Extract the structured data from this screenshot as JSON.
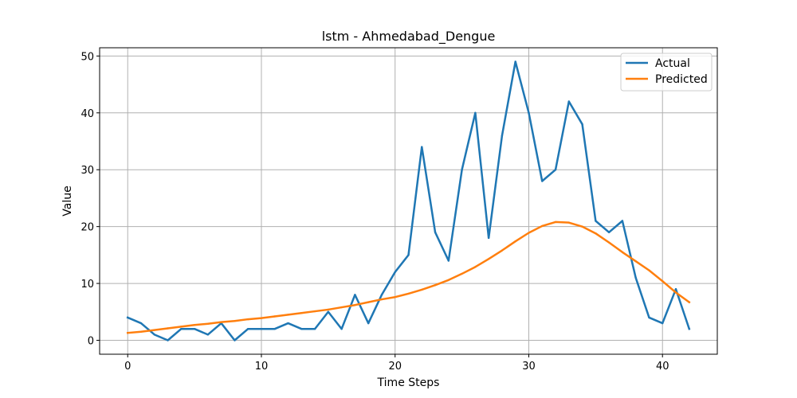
{
  "chart_data": {
    "type": "line",
    "title": "lstm - Ahmedabad_Dengue",
    "xlabel": "Time Steps",
    "ylabel": "Value",
    "xlim": [
      -2.1,
      44.1
    ],
    "ylim": [
      -2.45,
      51.45
    ],
    "xticks": [
      0,
      10,
      20,
      30,
      40
    ],
    "yticks": [
      0,
      10,
      20,
      30,
      40,
      50
    ],
    "grid": true,
    "legend_position": "top-right",
    "series": [
      {
        "name": "Actual",
        "color": "#1f77b4",
        "x": [
          0,
          1,
          2,
          3,
          4,
          5,
          6,
          7,
          8,
          9,
          10,
          11,
          12,
          13,
          14,
          15,
          16,
          17,
          18,
          19,
          20,
          21,
          22,
          23,
          24,
          25,
          26,
          27,
          28,
          29,
          30,
          31,
          32,
          33,
          34,
          35,
          36,
          37,
          38,
          39,
          40,
          41,
          42
        ],
        "values": [
          4,
          3,
          1,
          0,
          2,
          2,
          1,
          3,
          0,
          2,
          2,
          2,
          3,
          2,
          2,
          5,
          2,
          8,
          3,
          8,
          12,
          15,
          34,
          19,
          14,
          30,
          40,
          18,
          36,
          49,
          40,
          28,
          30,
          42,
          38,
          21,
          19,
          21,
          11,
          4,
          3,
          9,
          2
        ]
      },
      {
        "name": "Predicted",
        "color": "#ff7f0e",
        "x": [
          0,
          1,
          2,
          3,
          4,
          5,
          6,
          7,
          8,
          9,
          10,
          11,
          12,
          13,
          14,
          15,
          16,
          17,
          18,
          19,
          20,
          21,
          22,
          23,
          24,
          25,
          26,
          27,
          28,
          29,
          30,
          31,
          32,
          33,
          34,
          35,
          36,
          37,
          38,
          39,
          40,
          41,
          42
        ],
        "values": [
          1.3,
          1.5,
          1.8,
          2.1,
          2.4,
          2.7,
          2.9,
          3.2,
          3.4,
          3.7,
          3.9,
          4.2,
          4.5,
          4.8,
          5.1,
          5.4,
          5.8,
          6.2,
          6.7,
          7.2,
          7.6,
          8.2,
          8.9,
          9.7,
          10.6,
          11.7,
          12.9,
          14.3,
          15.8,
          17.4,
          18.9,
          20.1,
          20.8,
          20.7,
          20.0,
          18.8,
          17.2,
          15.5,
          13.9,
          12.3,
          10.4,
          8.4,
          6.7
        ]
      }
    ]
  }
}
